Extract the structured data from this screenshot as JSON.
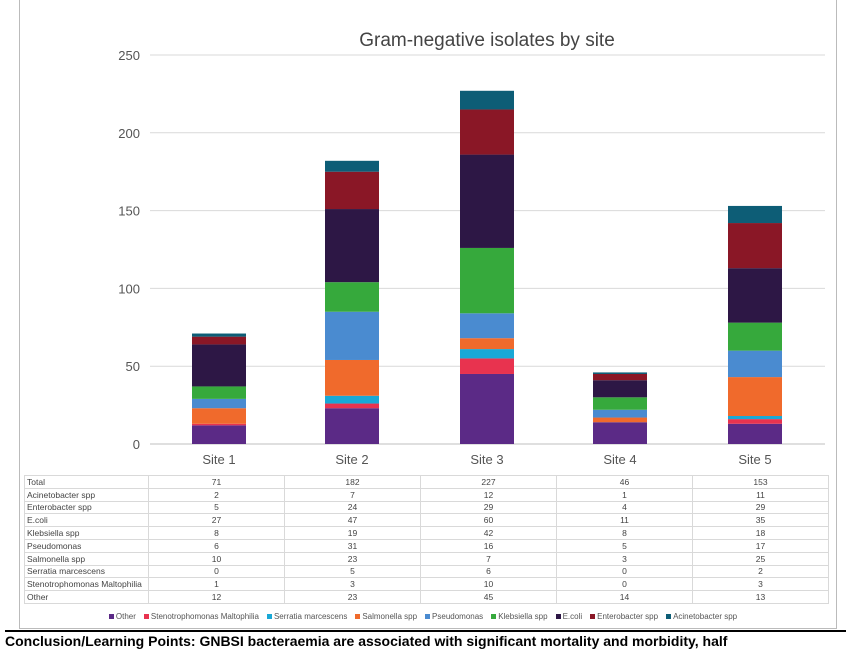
{
  "chart_data": {
    "type": "bar",
    "stacked": true,
    "title": "Gram-negative isolates by site",
    "categories": [
      "Site 1",
      "Site 2",
      "Site 3",
      "Site 4",
      "Site 5"
    ],
    "ylim": [
      0,
      250
    ],
    "yticks": [
      "0",
      "50",
      "100",
      "150",
      "200",
      "250"
    ],
    "grid": true,
    "legend_position": "bottom",
    "series": [
      {
        "name": "Other",
        "color": "#5b2a86",
        "values": [
          12,
          23,
          45,
          14,
          13
        ]
      },
      {
        "name": "Stenotrophomonas Maltophilia",
        "color": "#e8334f",
        "values": [
          1,
          3,
          10,
          0,
          3
        ]
      },
      {
        "name": "Serratia marcescens",
        "color": "#19a8d6",
        "values": [
          0,
          5,
          6,
          0,
          2
        ]
      },
      {
        "name": "Salmonella spp",
        "color": "#f06a2c",
        "values": [
          10,
          23,
          7,
          3,
          25
        ]
      },
      {
        "name": "Pseudomonas",
        "color": "#4a8bd0",
        "values": [
          6,
          31,
          16,
          5,
          17
        ]
      },
      {
        "name": "Klebsiella spp",
        "color": "#36a93c",
        "values": [
          8,
          19,
          42,
          8,
          18
        ]
      },
      {
        "name": "E.coli",
        "color": "#2d1745",
        "values": [
          27,
          47,
          60,
          11,
          35
        ]
      },
      {
        "name": "Enterobacter spp",
        "color": "#8a1726",
        "values": [
          5,
          24,
          29,
          4,
          29
        ]
      },
      {
        "name": "Acinetobacter spp",
        "color": "#0d5d76",
        "values": [
          2,
          7,
          12,
          1,
          11
        ]
      }
    ],
    "table": {
      "total_label": "Total",
      "totals": [
        71,
        182,
        227,
        46,
        153
      ],
      "row_order": [
        "Acinetobacter spp",
        "Enterobacter spp",
        "E.coli",
        "Klebsiella spp",
        "Pseudomonas",
        "Salmonella spp",
        "Serratia marcescens",
        "Stenotrophomonas Maltophilia",
        "Other"
      ]
    }
  },
  "footer_text": "Conclusion/Learning Points: GNBSI bacteraemia are associated with significant mortality and morbidity, half"
}
